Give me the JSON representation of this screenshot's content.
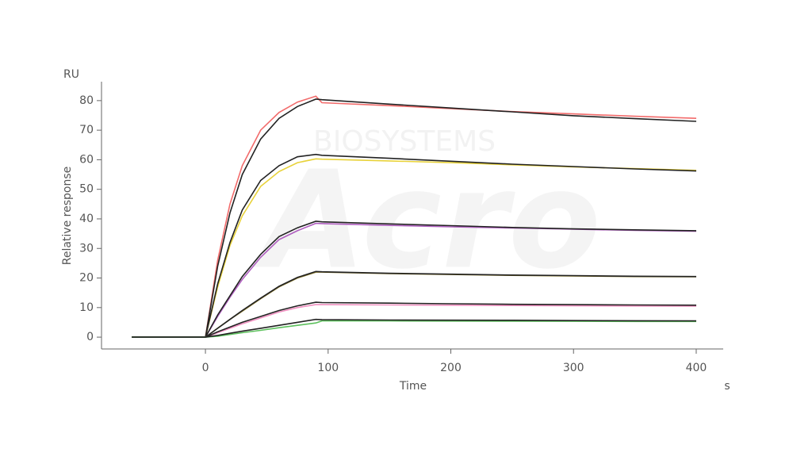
{
  "chart_data": {
    "type": "line",
    "y_unit": "RU",
    "ylabel": "Relative response",
    "xlabel": "Time",
    "x_unit": "s",
    "watermark": [
      "Acro",
      "BIOSYSTEMS"
    ],
    "x": [
      -60,
      0,
      10,
      20,
      30,
      45,
      60,
      75,
      90,
      95,
      150,
      200,
      250,
      300,
      350,
      400
    ],
    "series": [
      {
        "color": "#f26b6b",
        "values": [
          0,
          0,
          26,
          45,
          58,
          70,
          76,
          79.5,
          81.5,
          79.3,
          78.3,
          77.3,
          76.3,
          75.5,
          74.7,
          74
        ]
      },
      {
        "color": "#222222",
        "values": [
          0,
          0,
          24,
          42,
          55,
          67,
          74,
          78,
          80.5,
          80.3,
          78.8,
          77.5,
          76.2,
          74.9,
          73.9,
          73
        ]
      },
      {
        "color": "#e8d23a",
        "values": [
          0,
          0,
          17,
          31,
          41,
          51,
          56,
          59,
          60.3,
          60.2,
          59.6,
          59,
          58.3,
          57.6,
          57,
          56.4
        ]
      },
      {
        "color": "#222222",
        "values": [
          0,
          0,
          18,
          32,
          43,
          53,
          58,
          61,
          61.8,
          61.5,
          60.5,
          59.5,
          58.5,
          57.7,
          56.9,
          56.2
        ]
      },
      {
        "color": "#b05fc0",
        "values": [
          0,
          0,
          7,
          13.5,
          19.5,
          27,
          33,
          36,
          38.5,
          38.4,
          37.8,
          37.3,
          36.9,
          36.5,
          36.1,
          35.8
        ]
      },
      {
        "color": "#222222",
        "values": [
          0,
          0,
          7.5,
          14,
          20.5,
          28,
          34,
          37,
          39.2,
          39,
          38.3,
          37.7,
          37.1,
          36.6,
          36.3,
          36
        ]
      },
      {
        "color": "#8a7a2a",
        "values": [
          0,
          0,
          3,
          6,
          8.8,
          13,
          17,
          20,
          22,
          22,
          21.5,
          21.2,
          20.9,
          20.7,
          20.5,
          20.4
        ]
      },
      {
        "color": "#222222",
        "values": [
          0,
          0,
          3,
          6,
          9,
          13.2,
          17.2,
          20.2,
          22.2,
          22.1,
          21.6,
          21.3,
          21,
          20.8,
          20.6,
          20.5
        ]
      },
      {
        "color": "#f08fc0",
        "values": [
          0,
          0,
          1.5,
          3,
          4.5,
          6.5,
          8.5,
          10,
          11,
          11,
          10.9,
          10.8,
          10.7,
          10.6,
          10.55,
          10.5
        ]
      },
      {
        "color": "#222222",
        "values": [
          0,
          0,
          1.8,
          3.4,
          5,
          7,
          9,
          10.6,
          11.8,
          11.7,
          11.5,
          11.3,
          11.1,
          11,
          10.9,
          10.8
        ]
      },
      {
        "color": "#5cc05c",
        "values": [
          0,
          0,
          0.3,
          0.9,
          1.5,
          2.3,
          3.2,
          4,
          4.8,
          5.5,
          5.5,
          5.45,
          5.4,
          5.35,
          5.3,
          5.3
        ]
      },
      {
        "color": "#222222",
        "values": [
          0,
          0,
          0.6,
          1.3,
          2,
          3,
          4,
          5,
          6,
          5.9,
          5.8,
          5.75,
          5.7,
          5.6,
          5.55,
          5.5
        ]
      }
    ],
    "xlim": [
      -84.7,
      422
    ],
    "ylim": [
      -4,
      86.4
    ],
    "xticks": [
      0,
      100,
      200,
      300,
      400
    ],
    "yticks": [
      0,
      10,
      20,
      30,
      40,
      50,
      60,
      70,
      80
    ]
  }
}
